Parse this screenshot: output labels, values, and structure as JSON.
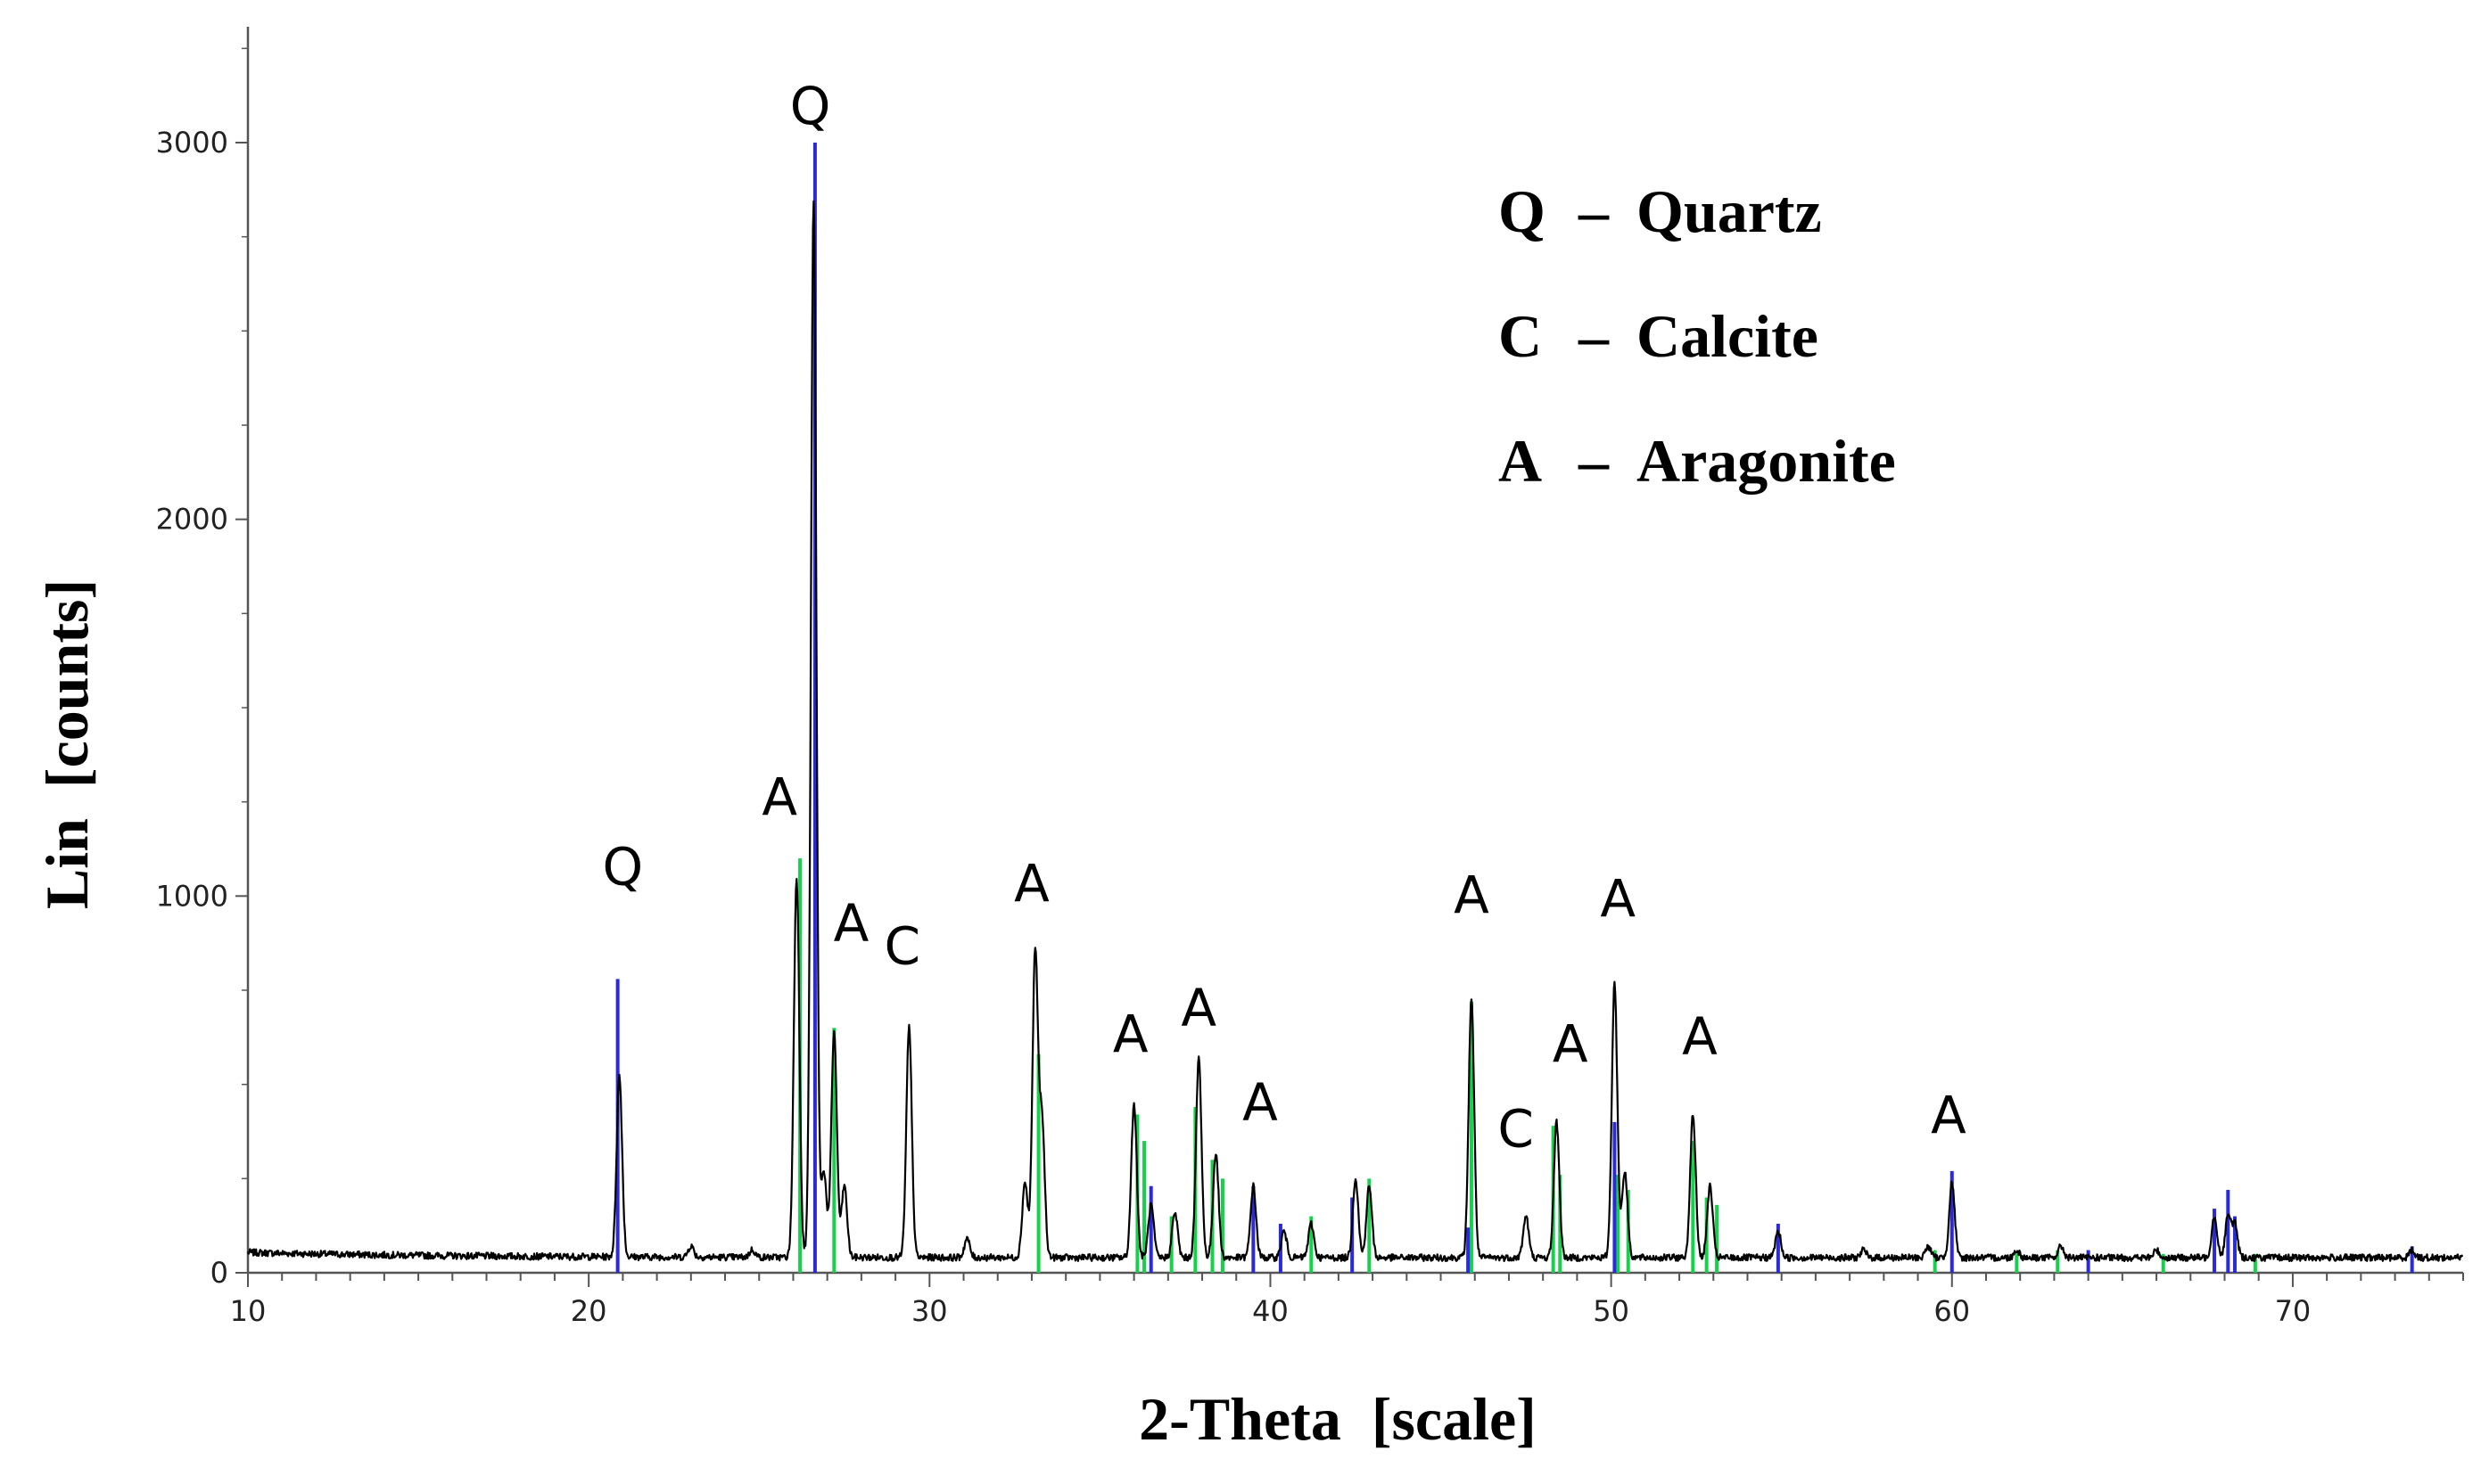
{
  "chart_data": {
    "type": "line",
    "xlabel": "2-Theta  [scale]",
    "ylabel": "Lin  [counts]",
    "xlim": [
      10,
      75
    ],
    "ylim": [
      0,
      3300
    ],
    "x_ticks": [
      10,
      20,
      30,
      40,
      50,
      60,
      70
    ],
    "y_ticks": [
      0,
      1000,
      2000,
      3000
    ],
    "minor_x_step": 1,
    "baseline": 40,
    "series": [
      {
        "color": "#000000",
        "style": "line",
        "peaks": [
          [
            20.9,
            520
          ],
          [
            23.0,
            70
          ],
          [
            24.8,
            60
          ],
          [
            26.1,
            1050
          ],
          [
            26.6,
            2850
          ],
          [
            26.9,
            270
          ],
          [
            27.2,
            640
          ],
          [
            27.5,
            230
          ],
          [
            29.4,
            650
          ],
          [
            31.1,
            90
          ],
          [
            32.8,
            240
          ],
          [
            33.1,
            850
          ],
          [
            33.3,
            400
          ],
          [
            36.0,
            450
          ],
          [
            36.5,
            180
          ],
          [
            37.2,
            160
          ],
          [
            37.9,
            570
          ],
          [
            38.4,
            320
          ],
          [
            39.5,
            230
          ],
          [
            40.4,
            110
          ],
          [
            41.2,
            130
          ],
          [
            42.5,
            250
          ],
          [
            42.9,
            230
          ],
          [
            45.9,
            730
          ],
          [
            47.5,
            150
          ],
          [
            48.4,
            400
          ],
          [
            50.1,
            770
          ],
          [
            50.4,
            270
          ],
          [
            52.4,
            420
          ],
          [
            52.9,
            230
          ],
          [
            54.9,
            110
          ],
          [
            57.4,
            60
          ],
          [
            59.3,
            70
          ],
          [
            60.0,
            240
          ],
          [
            61.9,
            60
          ],
          [
            63.2,
            70
          ],
          [
            66.0,
            60
          ],
          [
            67.7,
            150
          ],
          [
            68.1,
            150
          ],
          [
            68.3,
            130
          ],
          [
            73.5,
            60
          ]
        ]
      },
      {
        "color": "#2a2ad8",
        "style": "sticks",
        "sticks": [
          [
            20.85,
            780
          ],
          [
            26.64,
            3000
          ],
          [
            36.5,
            230
          ],
          [
            39.5,
            230
          ],
          [
            40.3,
            130
          ],
          [
            42.4,
            200
          ],
          [
            45.8,
            120
          ],
          [
            50.1,
            400
          ],
          [
            54.9,
            130
          ],
          [
            60.0,
            270
          ],
          [
            64.0,
            60
          ],
          [
            67.7,
            170
          ],
          [
            68.1,
            220
          ],
          [
            68.3,
            150
          ],
          [
            73.5,
            70
          ]
        ]
      },
      {
        "color": "#16d24a",
        "style": "sticks",
        "sticks": [
          [
            26.2,
            1100
          ],
          [
            27.2,
            650
          ],
          [
            33.2,
            580
          ],
          [
            36.1,
            420
          ],
          [
            36.3,
            350
          ],
          [
            37.1,
            150
          ],
          [
            37.8,
            440
          ],
          [
            38.3,
            300
          ],
          [
            38.6,
            250
          ],
          [
            41.2,
            150
          ],
          [
            42.9,
            250
          ],
          [
            45.9,
            720
          ],
          [
            48.3,
            390
          ],
          [
            48.5,
            260
          ],
          [
            50.2,
            260
          ],
          [
            50.5,
            220
          ],
          [
            52.4,
            350
          ],
          [
            52.8,
            200
          ],
          [
            53.1,
            180
          ],
          [
            59.5,
            60
          ],
          [
            61.9,
            50
          ],
          [
            63.1,
            60
          ],
          [
            66.2,
            50
          ],
          [
            68.9,
            50
          ]
        ]
      }
    ],
    "annotations": [
      {
        "text": "Q",
        "x": 21.0,
        "y": 1030
      },
      {
        "text": "A",
        "x": 25.6,
        "y": 1215
      },
      {
        "text": "Q",
        "x": 26.5,
        "y": 3050
      },
      {
        "text": "A",
        "x": 27.7,
        "y": 880
      },
      {
        "text": "C",
        "x": 29.2,
        "y": 820
      },
      {
        "text": "A",
        "x": 33.0,
        "y": 985
      },
      {
        "text": "A",
        "x": 35.9,
        "y": 585
      },
      {
        "text": "A",
        "x": 37.9,
        "y": 655
      },
      {
        "text": "A",
        "x": 39.7,
        "y": 405
      },
      {
        "text": "A",
        "x": 45.9,
        "y": 955
      },
      {
        "text": "C",
        "x": 47.2,
        "y": 335
      },
      {
        "text": "A",
        "x": 48.8,
        "y": 560
      },
      {
        "text": "A",
        "x": 50.2,
        "y": 945
      },
      {
        "text": "A",
        "x": 52.6,
        "y": 580
      },
      {
        "text": "A",
        "x": 59.9,
        "y": 370
      }
    ],
    "legend": {
      "placement": "top-right",
      "entries": [
        {
          "symbol": "Q",
          "dash": "–",
          "name": "Quartz"
        },
        {
          "symbol": "C",
          "dash": "–",
          "name": "Calcite"
        },
        {
          "symbol": "A",
          "dash": "–",
          "name": "Aragonite"
        }
      ]
    }
  }
}
